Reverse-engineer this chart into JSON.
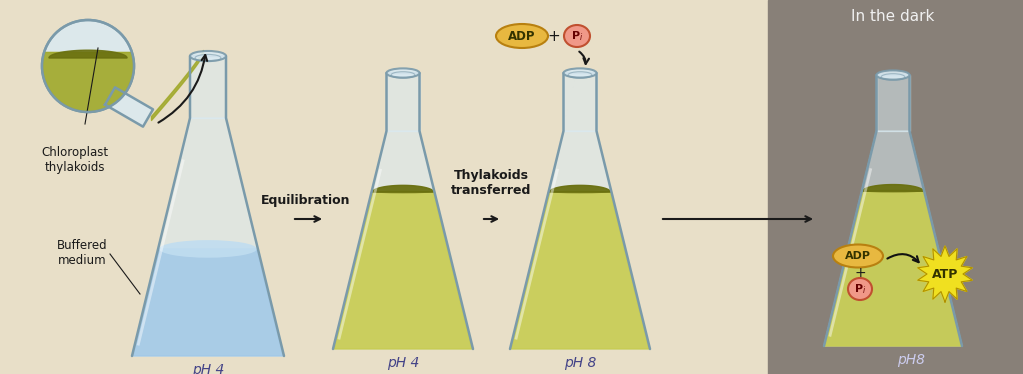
{
  "bg_color_left": "#e8dfc8",
  "bg_color_right": "#888078",
  "flask_glass": "#cce0e8",
  "flask_outline": "#7a9aaa",
  "flask_glass_fill": "#daeaf2",
  "green_light": "#c8cc50",
  "green_mid": "#a0a828",
  "green_dark": "#6a7010",
  "blue_fill": "#a0c8e8",
  "blue_light": "#c0ddf0",
  "arrow_color": "#1a1a1a",
  "text_dark": "#1a1a1a",
  "text_light": "#f0f0f0",
  "adp_fill": "#e8b840",
  "adp_stroke": "#b88010",
  "pi_fill": "#f09888",
  "pi_stroke": "#c05030",
  "atp_fill": "#f0e020",
  "atp_stroke": "#b09000",
  "label_flask1": "pH 4",
  "label_flask2": "pH 4",
  "label_flask3": "pH 8",
  "label_flask4": "pH8",
  "label_chloroplast": "Chloroplast\nthylakoids",
  "label_buffered": "Buffered\nmedium",
  "label_equilibration": "Equilibration",
  "label_thylakoids": "Thylakoids\ntransferred",
  "label_in_dark": "In the dark",
  "label_adp": "ADP",
  "label_pi": "Pi",
  "label_atp": "ATP",
  "label_plus": "+"
}
